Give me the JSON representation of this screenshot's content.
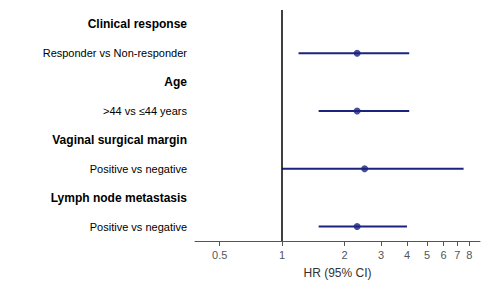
{
  "chart_data": {
    "type": "forest",
    "x_label": "HR (95% CI)",
    "log": "x",
    "grid": false,
    "xlim": [
      0.38,
      9.0
    ],
    "xticks": [
      0.5,
      1,
      2,
      3,
      4,
      5,
      6,
      7,
      8
    ],
    "reference_line": 1,
    "color": "#1a237e",
    "rows": [
      {
        "header": "Clinical response",
        "label": "Responder vs Non-responder",
        "hr": 2.3,
        "ci_low": 1.2,
        "ci_high": 4.1
      },
      {
        "header": "Age",
        "label": ">44 vs ≤44 years",
        "hr": 2.3,
        "ci_low": 1.5,
        "ci_high": 4.1
      },
      {
        "header": "Vaginal surgical margin",
        "label": "Positive vs negative",
        "hr": 2.5,
        "ci_low": 1.0,
        "ci_high": 7.5
      },
      {
        "header": "Lymph node metastasis",
        "label": "Positive vs negative",
        "hr": 2.3,
        "ci_low": 1.5,
        "ci_high": 4.0
      }
    ]
  }
}
